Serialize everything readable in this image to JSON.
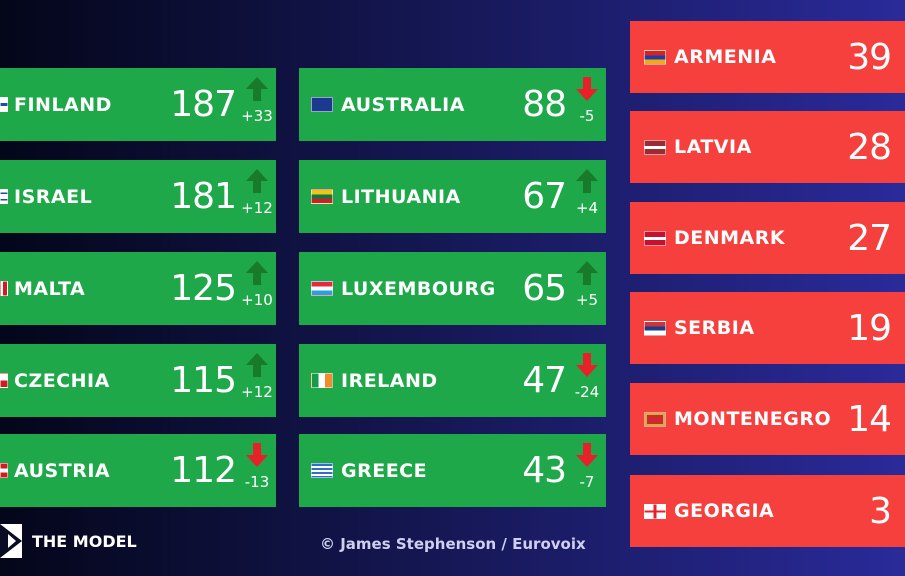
{
  "col1": [
    {
      "name": "FINLAND",
      "points": "187",
      "delta": "+33",
      "dir": "up"
    },
    {
      "name": "ISRAEL",
      "points": "181",
      "delta": "+12",
      "dir": "up"
    },
    {
      "name": "MALTA",
      "points": "125",
      "delta": "+10",
      "dir": "up"
    },
    {
      "name": "CZECHIA",
      "points": "115",
      "delta": "+12",
      "dir": "up"
    },
    {
      "name": "AUSTRIA",
      "points": "112",
      "delta": "-13",
      "dir": "down"
    }
  ],
  "col2": [
    {
      "name": "AUSTRALIA",
      "points": "88",
      "delta": "-5",
      "dir": "down"
    },
    {
      "name": "LITHUANIA",
      "points": "67",
      "delta": "+4",
      "dir": "up"
    },
    {
      "name": "LUXEMBOURG",
      "points": "65",
      "delta": "+5",
      "dir": "up"
    },
    {
      "name": "IRELAND",
      "points": "47",
      "delta": "-24",
      "dir": "down"
    },
    {
      "name": "GREECE",
      "points": "43",
      "delta": "-7",
      "dir": "down"
    }
  ],
  "col3": [
    {
      "name": "ARMENIA",
      "points": "39"
    },
    {
      "name": "LATVIA",
      "points": "28"
    },
    {
      "name": "DENMARK",
      "points": "27"
    },
    {
      "name": "SERBIA",
      "points": "19"
    },
    {
      "name": "MONTENEGRO",
      "points": "14"
    },
    {
      "name": "GEORGIA",
      "points": "3"
    }
  ],
  "footer": {
    "brand": "THE MODEL",
    "credit": "© James Stephenson / Eurovoix"
  },
  "colors": {
    "green": "#1ea84a",
    "red": "#f5403e",
    "arrow_up": "#1a7a2c",
    "arrow_down": "#e8202a"
  }
}
